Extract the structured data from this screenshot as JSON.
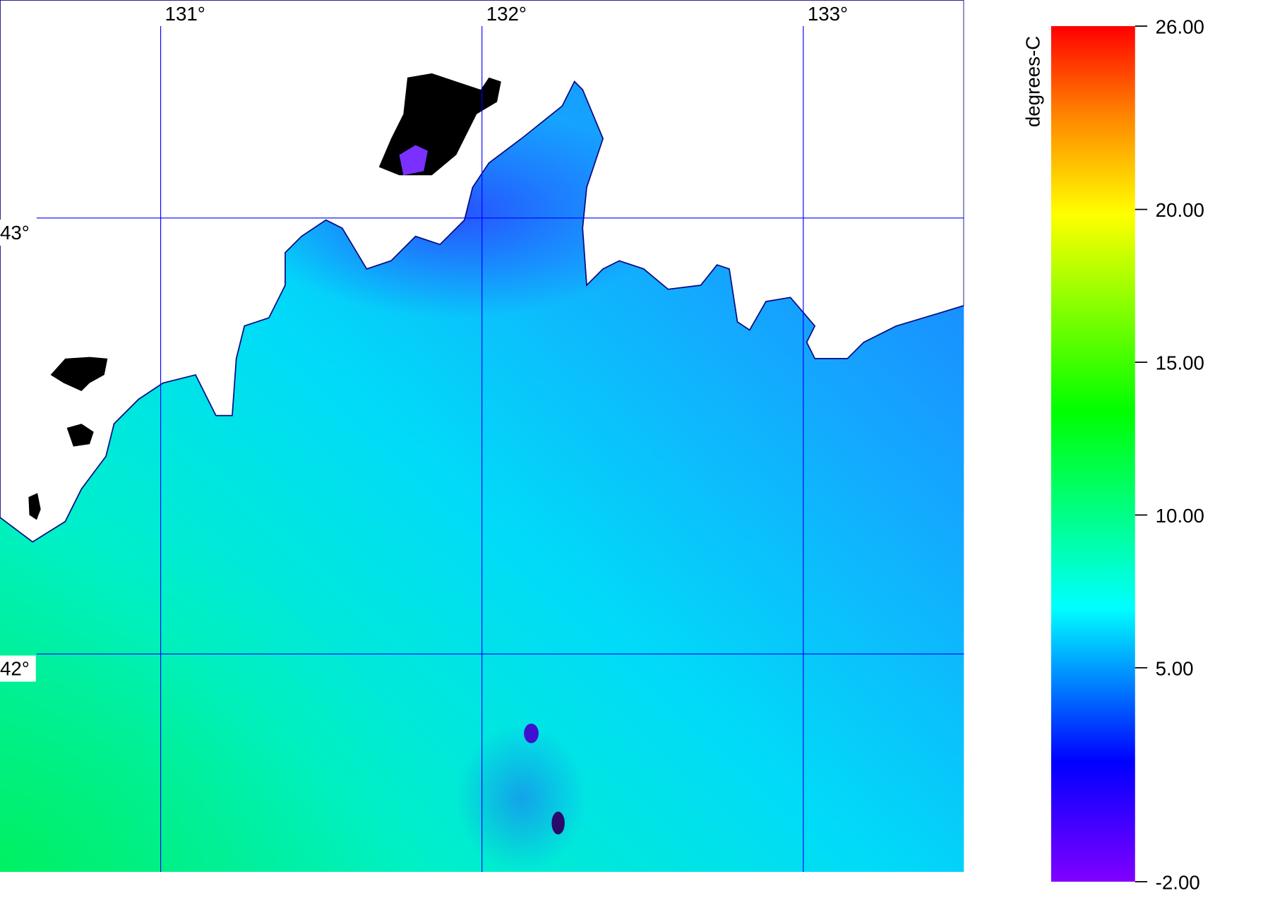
{
  "map": {
    "lon_lim": [
      130.5,
      133.5
    ],
    "lat_lim": [
      41.5,
      43.5
    ],
    "lon_ticks": [
      {
        "value": 131,
        "label": "131°"
      },
      {
        "value": 132,
        "label": "132°"
      },
      {
        "value": 133,
        "label": "133°"
      }
    ],
    "lat_ticks": [
      {
        "value": 43,
        "label": "43°"
      },
      {
        "value": 42,
        "label": "42°"
      }
    ],
    "grid_color": "#0000ff"
  },
  "colorbar": {
    "title": "degrees-C",
    "lim": [
      -2,
      26
    ],
    "ticks": [
      {
        "value": 26,
        "label": "26.00"
      },
      {
        "value": 20,
        "label": "20.00"
      },
      {
        "value": 15,
        "label": "15.00"
      },
      {
        "value": 10,
        "label": "10.00"
      },
      {
        "value": 5,
        "label": "5.00"
      },
      {
        "value": -2,
        "label": "-2.00"
      }
    ]
  }
}
